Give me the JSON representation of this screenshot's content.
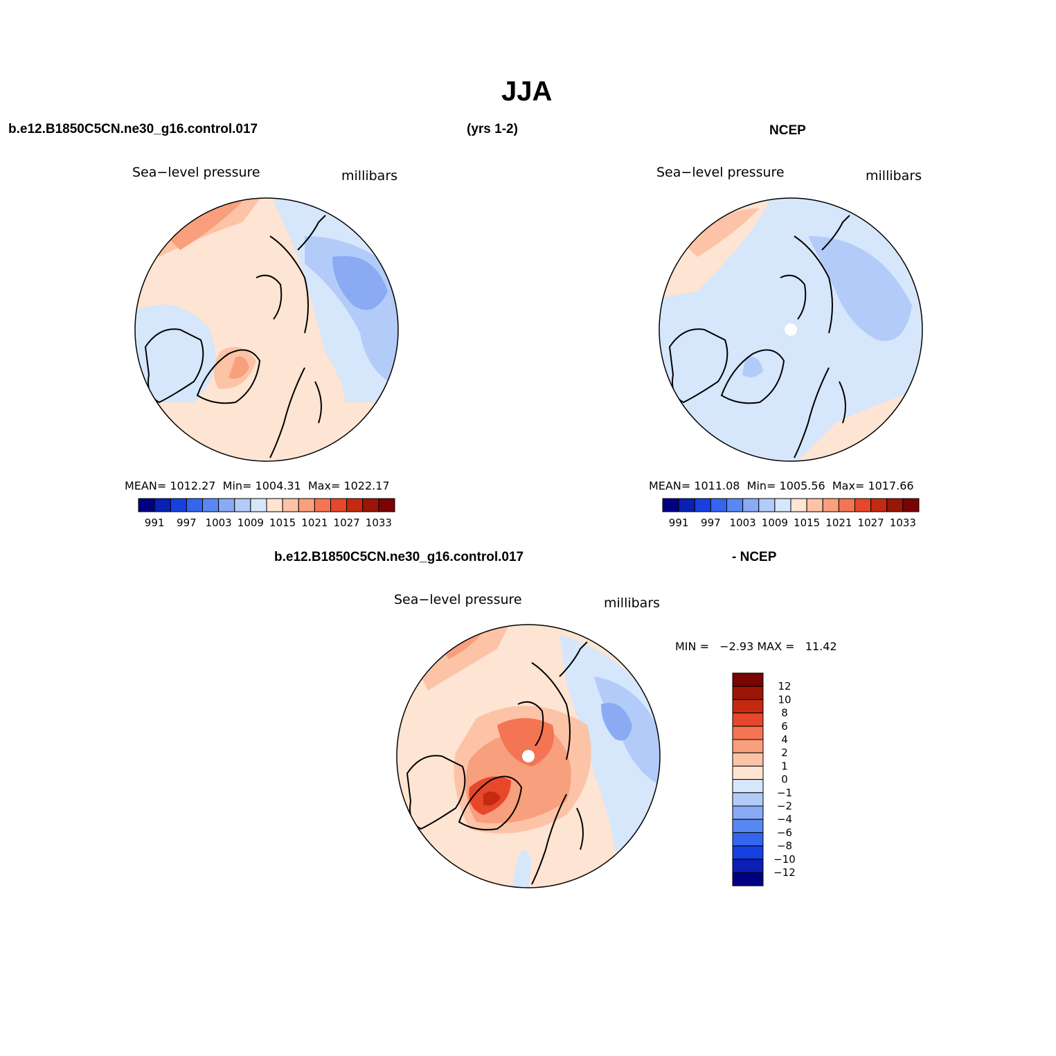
{
  "title": "JJA",
  "top_left_case": "b.e12.B1850C5CN.ne30_g16.control.017",
  "top_years": "(yrs 1-2)",
  "top_right_case": "NCEP",
  "bottom_case": "b.e12.B1850C5CN.ne30_g16.control.017",
  "bottom_suffix": "- NCEP",
  "palette": [
    "#000080",
    "#0a1fb4",
    "#1640e0",
    "#3565ee",
    "#5a88f2",
    "#8aaaf4",
    "#b3cbf8",
    "#d6e6fb",
    "#fee4d2",
    "#fcc3a6",
    "#f89f7d",
    "#f37553",
    "#e7472a",
    "#c52a10",
    "#9b1606",
    "#7a0403"
  ],
  "panels": {
    "model": {
      "field_label": "Sea−level pressure",
      "units": "millibars",
      "stats": "MEAN= 1012.27  Min= 1004.31  Max= 1022.17",
      "colorbar_ticks": [
        "991",
        "997",
        "1003",
        "1009",
        "1015",
        "1021",
        "1027",
        "1033"
      ]
    },
    "obs": {
      "field_label": "Sea−level pressure",
      "units": "millibars",
      "stats": "MEAN= 1011.08  Min= 1005.56  Max= 1017.66",
      "colorbar_ticks": [
        "991",
        "997",
        "1003",
        "1009",
        "1015",
        "1021",
        "1027",
        "1033"
      ]
    },
    "diff": {
      "field_label": "Sea−level pressure",
      "units": "millibars",
      "stats": "MIN =   −2.93 MAX =   11.42",
      "colorbar_ticks": [
        "12",
        "10",
        "8",
        "6",
        "4",
        "2",
        "1",
        "0",
        "−1",
        "−2",
        "−4",
        "−6",
        "−8",
        "−10",
        "−12"
      ]
    }
  }
}
